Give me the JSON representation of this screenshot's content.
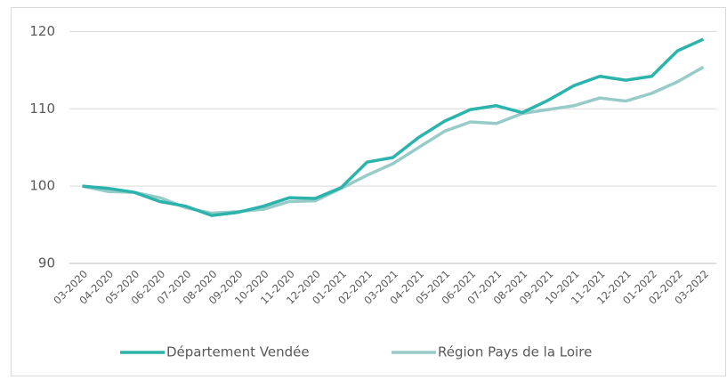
{
  "chart_data": {
    "type": "line",
    "categories": [
      "03-2020",
      "04-2020",
      "05-2020",
      "06-2020",
      "07-2020",
      "08-2020",
      "09-2020",
      "10-2020",
      "11-2020",
      "12-2020",
      "01-2021",
      "02-2021",
      "03-2021",
      "04-2021",
      "05-2021",
      "06-2021",
      "07-2021",
      "08-2021",
      "09-2021",
      "10-2021",
      "11-2021",
      "12-2021",
      "01-2022",
      "02-2022",
      "03-2022"
    ],
    "series": [
      {
        "name": "Département Vendée",
        "color": "#2bb3ac",
        "values": [
          100,
          99.7,
          99.2,
          98.0,
          97.4,
          96.2,
          96.6,
          97.4,
          98.5,
          98.4,
          99.8,
          103.1,
          103.7,
          106.3,
          108.4,
          109.9,
          110.4,
          109.5,
          111.1,
          113.0,
          114.2,
          113.7,
          114.2,
          117.5,
          119.0
        ]
      },
      {
        "name": "Région Pays de la Loire",
        "color": "#97cbc8",
        "values": [
          100,
          99.3,
          99.2,
          98.5,
          97.2,
          96.5,
          96.7,
          97.0,
          98.0,
          98.1,
          99.7,
          101.4,
          102.9,
          105.0,
          107.1,
          108.3,
          108.1,
          109.4,
          109.9,
          110.4,
          111.4,
          111.0,
          112.0,
          113.5,
          115.4
        ]
      }
    ],
    "ylim": [
      90,
      122
    ],
    "yticks": [
      90,
      100,
      110,
      120
    ],
    "grid": true,
    "legend": "bottom"
  }
}
